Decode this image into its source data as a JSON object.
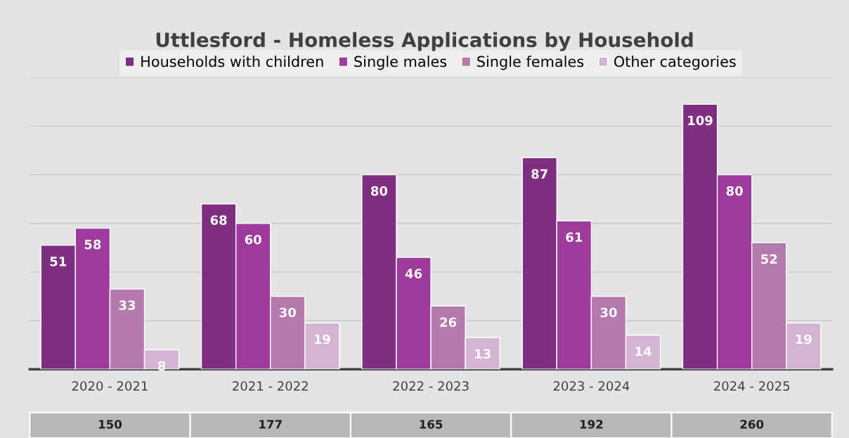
{
  "chart_data": {
    "type": "bar",
    "title": "Uttlesford - Homeless Applications by Household",
    "categories": [
      "2020 - 2021",
      "2021 - 2022",
      "2022 - 2023",
      "2023 - 2024",
      "2024 - 2025"
    ],
    "series": [
      {
        "name": "Households with children",
        "color": "#7f2f80",
        "values": [
          51,
          68,
          80,
          87,
          109
        ]
      },
      {
        "name": "Single males",
        "color": "#9e3a9c",
        "values": [
          58,
          60,
          46,
          61,
          80
        ]
      },
      {
        "name": "Single females",
        "color": "#b47aae",
        "values": [
          33,
          30,
          26,
          30,
          52
        ]
      },
      {
        "name": "Other categories",
        "color": "#d5b3d2",
        "values": [
          8,
          19,
          13,
          14,
          19
        ]
      }
    ],
    "ylim": [
      0,
      120
    ],
    "yticks": [
      {
        "value": 20,
        "label": null
      },
      {
        "value": 40,
        "label": null
      },
      {
        "value": 60,
        "label": null
      },
      {
        "value": 80,
        "label": null
      },
      {
        "value": 100,
        "label": null
      },
      {
        "value": 120,
        "label": null
      }
    ],
    "grid": "y",
    "tick_labels": "x",
    "legend": "top",
    "data_labels": true,
    "annotations": [
      "150",
      "177",
      "165",
      "192",
      "260"
    ]
  }
}
